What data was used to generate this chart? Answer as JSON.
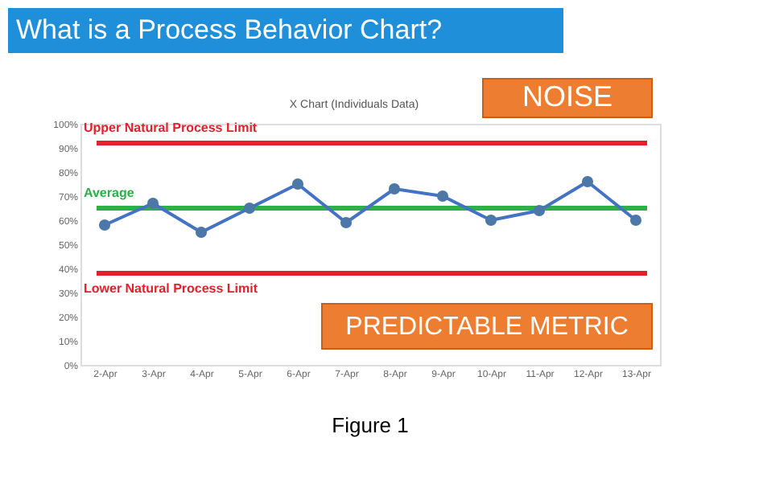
{
  "chart_data": {
    "type": "line",
    "title": "What is a Process Behavior Chart?",
    "subtitle": "X Chart (Individuals Data)",
    "categories": [
      "2-Apr",
      "3-Apr",
      "4-Apr",
      "5-Apr",
      "6-Apr",
      "7-Apr",
      "8-Apr",
      "9-Apr",
      "10-Apr",
      "11-Apr",
      "12-Apr",
      "13-Apr"
    ],
    "series": [
      {
        "color": "#4472c4",
        "values": [
          58,
          67,
          55,
          65,
          75,
          59,
          73,
          70,
          60,
          64,
          76,
          60
        ]
      }
    ],
    "marker": "circle",
    "ylim": [
      0,
      100
    ],
    "yticks": [
      {
        "value": 0,
        "label": "0%"
      },
      {
        "value": 10,
        "label": "10%"
      },
      {
        "value": 20,
        "label": "20%"
      },
      {
        "value": 30,
        "label": "30%"
      },
      {
        "value": 40,
        "label": "40%"
      },
      {
        "value": 50,
        "label": "50%"
      },
      {
        "value": 60,
        "label": "60%"
      },
      {
        "value": 70,
        "label": "70%"
      },
      {
        "value": 80,
        "label": "80%"
      },
      {
        "value": 90,
        "label": "90%"
      },
      {
        "value": 100,
        "label": "100%"
      }
    ],
    "ref_lines": [
      {
        "axis": "y",
        "value": 92,
        "label": "Upper Natural Process Limit",
        "color": "#e3202c"
      },
      {
        "axis": "y",
        "value": 65,
        "label": "Average",
        "color": "#2bb04a"
      },
      {
        "axis": "y",
        "value": 38,
        "label": "Lower Natural Process Limit",
        "color": "#e3202c"
      }
    ],
    "annotations": [
      "NOISE",
      "PREDICTABLE METRIC",
      "Figure 1"
    ],
    "grid": false
  }
}
